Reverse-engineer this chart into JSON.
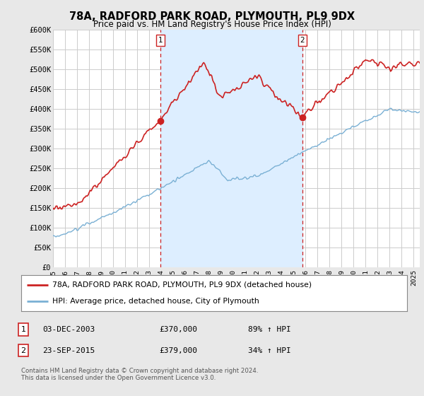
{
  "title": "78A, RADFORD PARK ROAD, PLYMOUTH, PL9 9DX",
  "subtitle": "Price paid vs. HM Land Registry's House Price Index (HPI)",
  "ylim": [
    0,
    600000
  ],
  "yticks": [
    0,
    50000,
    100000,
    150000,
    200000,
    250000,
    300000,
    350000,
    400000,
    450000,
    500000,
    550000,
    600000
  ],
  "ytick_labels": [
    "£0",
    "£50K",
    "£100K",
    "£150K",
    "£200K",
    "£250K",
    "£300K",
    "£350K",
    "£400K",
    "£450K",
    "£500K",
    "£550K",
    "£600K"
  ],
  "bg_color": "#e8e8e8",
  "plot_bg_color": "#ffffff",
  "grid_color": "#cccccc",
  "hpi_color": "#7ab0d4",
  "price_color": "#cc2222",
  "shade_color": "#ddeeff",
  "purchase1_x": 2003.92,
  "purchase1_y": 370000,
  "purchase1_label": "1",
  "purchase1_date": "03-DEC-2003",
  "purchase1_price": "£370,000",
  "purchase1_hpi": "89% ↑ HPI",
  "purchase2_x": 2015.73,
  "purchase2_y": 379000,
  "purchase2_label": "2",
  "purchase2_date": "23-SEP-2015",
  "purchase2_price": "£379,000",
  "purchase2_hpi": "34% ↑ HPI",
  "legend_line1": "78A, RADFORD PARK ROAD, PLYMOUTH, PL9 9DX (detached house)",
  "legend_line2": "HPI: Average price, detached house, City of Plymouth",
  "footer": "Contains HM Land Registry data © Crown copyright and database right 2024.\nThis data is licensed under the Open Government Licence v3.0.",
  "xlim_left": 1995,
  "xlim_right": 2025.5
}
